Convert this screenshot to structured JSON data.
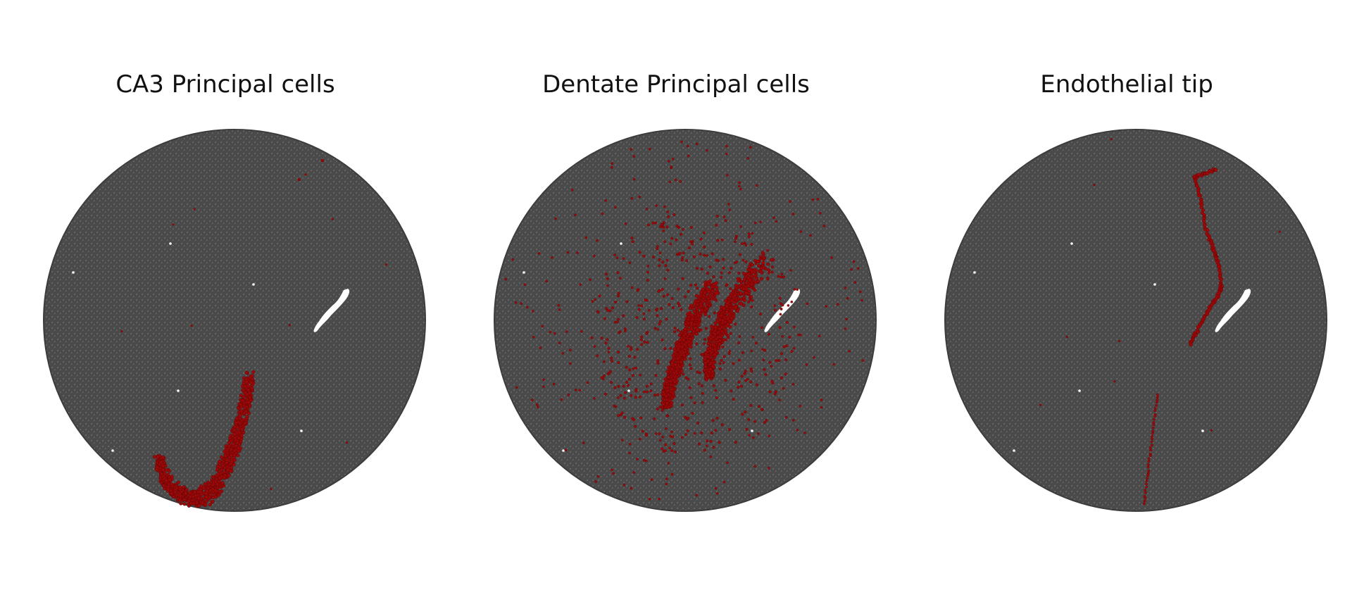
{
  "panels": [
    {
      "title": "CA3 Principal cells",
      "highlight": "ca3"
    },
    {
      "title": "Dentate Principal cells",
      "highlight": "dentate"
    },
    {
      "title": "Endothelial tip",
      "highlight": "endothelial"
    }
  ],
  "colors": {
    "background_cells": "#4a4a4a",
    "cell_speckle": "#7a7a7a",
    "highlight": "#9b0a0a",
    "highlight_edge": "#5e0000",
    "void": "#ffffff"
  }
}
